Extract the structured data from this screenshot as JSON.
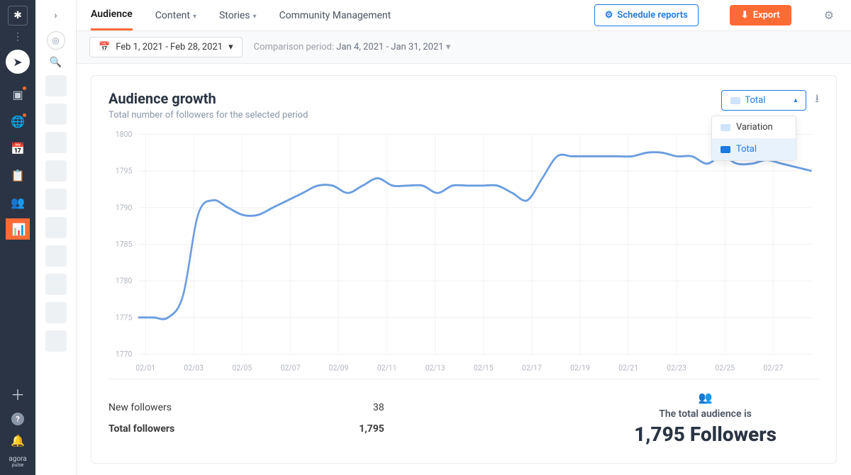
{
  "nav": {
    "icons": [
      "✈",
      "▢",
      "🌐",
      "📅",
      "📋",
      "👥",
      "📊"
    ],
    "active_index": 6,
    "brand": "agora",
    "brand_sub": "pulse"
  },
  "tabs": {
    "items": [
      "Audience",
      "Content",
      "Stories",
      "Community Management"
    ],
    "active_index": 0
  },
  "actions": {
    "schedule": "Schedule reports",
    "export": "Export"
  },
  "filters": {
    "date_range": "Feb 1, 2021 - Feb 28, 2021",
    "compare_label": "Comparison period:",
    "compare_range": "Jan 4, 2021 - Jan 31, 2021"
  },
  "card": {
    "title": "Audience growth",
    "subtitle": "Total number of followers for the selected period",
    "select_value": "Total",
    "dropdown": [
      "Variation",
      "Total"
    ],
    "dropdown_selected": 1
  },
  "chart": {
    "y_ticks": [
      1770,
      1775,
      1780,
      1785,
      1790,
      1795,
      1800
    ],
    "x_labels": [
      "02/01",
      "02/03",
      "02/05",
      "02/07",
      "02/09",
      "02/11",
      "02/13",
      "02/15",
      "02/17",
      "02/19",
      "02/21",
      "02/23",
      "02/25",
      "02/27"
    ],
    "series": [
      1775,
      1775,
      1775,
      1778,
      1789,
      1791,
      1790,
      1789,
      1789,
      1790,
      1791,
      1792,
      1793,
      1793,
      1792,
      1793,
      1794,
      1793,
      1793,
      1793,
      1792,
      1793,
      1793,
      1793,
      1793,
      1792,
      1791,
      1794,
      1797,
      1797,
      1797,
      1797,
      1797,
      1797,
      1797.5,
      1797.5,
      1797,
      1797,
      1796,
      1797,
      1796,
      1796,
      1796.5,
      1796,
      1795.5,
      1795
    ],
    "line_color": "#6a9de0",
    "grid_color": "#f2f2f2",
    "ylim": [
      1770,
      1800
    ]
  },
  "stats": {
    "new_followers_label": "New followers",
    "new_followers_value": "38",
    "total_followers_label": "Total followers",
    "total_followers_value": "1,795",
    "summary_lead": "The total audience is",
    "summary_big": "1,795 Followers"
  }
}
